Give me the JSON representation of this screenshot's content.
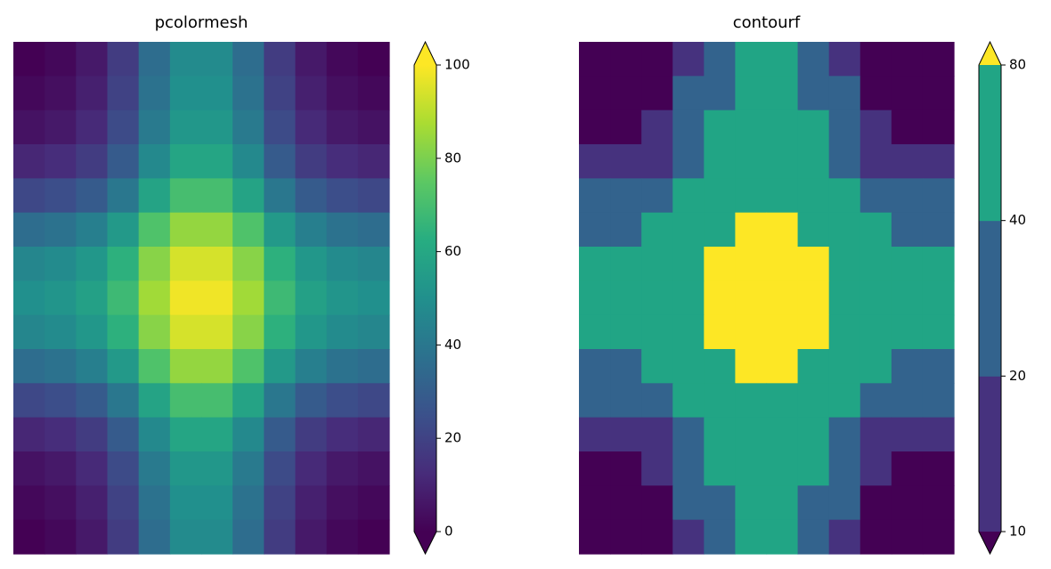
{
  "chart_data": [
    {
      "type": "heatmap",
      "title": "pcolormesh",
      "z": [
        [
          0,
          2,
          7,
          18,
          36,
          48,
          48,
          36,
          18,
          7,
          2,
          0
        ],
        [
          2,
          4,
          9,
          20,
          38,
          50,
          50,
          38,
          20,
          9,
          4,
          2
        ],
        [
          5,
          7,
          12,
          23,
          41,
          53,
          53,
          41,
          23,
          12,
          7,
          5
        ],
        [
          11,
          13,
          18,
          29,
          47,
          59,
          59,
          47,
          29,
          18,
          13,
          11
        ],
        [
          22,
          24,
          29,
          40,
          58,
          70,
          70,
          58,
          40,
          29,
          24,
          22
        ],
        [
          36,
          38,
          43,
          54,
          72,
          84,
          84,
          72,
          54,
          43,
          38,
          36
        ],
        [
          46,
          48,
          53,
          64,
          82,
          94,
          94,
          82,
          64,
          53,
          48,
          46
        ],
        [
          50,
          52,
          57,
          68,
          86,
          98,
          98,
          86,
          68,
          57,
          52,
          50
        ],
        [
          46,
          48,
          53,
          64,
          82,
          94,
          94,
          82,
          64,
          53,
          48,
          46
        ],
        [
          36,
          38,
          43,
          54,
          72,
          84,
          84,
          72,
          54,
          43,
          38,
          36
        ],
        [
          22,
          24,
          29,
          40,
          58,
          70,
          70,
          58,
          40,
          29,
          24,
          22
        ],
        [
          11,
          13,
          18,
          29,
          47,
          59,
          59,
          47,
          29,
          18,
          13,
          11
        ],
        [
          5,
          7,
          12,
          23,
          41,
          53,
          53,
          41,
          23,
          12,
          7,
          5
        ],
        [
          2,
          4,
          9,
          20,
          38,
          50,
          50,
          38,
          20,
          9,
          4,
          2
        ],
        [
          0,
          2,
          7,
          18,
          36,
          48,
          48,
          36,
          18,
          7,
          2,
          0
        ]
      ],
      "colormap": [
        "#440154",
        "#472c7a",
        "#3b518b",
        "#2c718e",
        "#21908d",
        "#27ad81",
        "#5cc863",
        "#aadc32",
        "#fde725"
      ],
      "clim": [
        0,
        100
      ],
      "cbar_ticks": [
        0,
        20,
        40,
        60,
        80,
        100
      ],
      "extend": "both"
    },
    {
      "type": "contourf",
      "title": "contourf",
      "z": [
        [
          0,
          2,
          7,
          18,
          36,
          48,
          48,
          36,
          18,
          7,
          2,
          0
        ],
        [
          2,
          4,
          9,
          20,
          38,
          50,
          50,
          38,
          20,
          9,
          4,
          2
        ],
        [
          5,
          7,
          12,
          23,
          41,
          53,
          53,
          41,
          23,
          12,
          7,
          5
        ],
        [
          11,
          13,
          18,
          29,
          47,
          59,
          59,
          47,
          29,
          18,
          13,
          11
        ],
        [
          22,
          24,
          29,
          40,
          58,
          70,
          70,
          58,
          40,
          29,
          24,
          22
        ],
        [
          36,
          38,
          43,
          54,
          72,
          84,
          84,
          72,
          54,
          43,
          38,
          36
        ],
        [
          46,
          48,
          53,
          64,
          82,
          94,
          94,
          82,
          64,
          53,
          48,
          46
        ],
        [
          50,
          52,
          57,
          68,
          86,
          98,
          98,
          86,
          68,
          57,
          52,
          50
        ],
        [
          46,
          48,
          53,
          64,
          82,
          94,
          94,
          82,
          64,
          53,
          48,
          46
        ],
        [
          36,
          38,
          43,
          54,
          72,
          84,
          84,
          72,
          54,
          43,
          38,
          36
        ],
        [
          22,
          24,
          29,
          40,
          58,
          70,
          70,
          58,
          40,
          29,
          24,
          22
        ],
        [
          11,
          13,
          18,
          29,
          47,
          59,
          59,
          47,
          29,
          18,
          13,
          11
        ],
        [
          5,
          7,
          12,
          23,
          41,
          53,
          53,
          41,
          23,
          12,
          7,
          5
        ],
        [
          2,
          4,
          9,
          20,
          38,
          50,
          50,
          38,
          20,
          9,
          4,
          2
        ],
        [
          0,
          2,
          7,
          18,
          36,
          48,
          48,
          36,
          18,
          7,
          2,
          0
        ]
      ],
      "levels": [
        10,
        20,
        40,
        80
      ],
      "colors": [
        "#440154",
        "#46327e",
        "#33638d",
        "#21a585",
        "#fde725"
      ],
      "extend": "both"
    }
  ]
}
